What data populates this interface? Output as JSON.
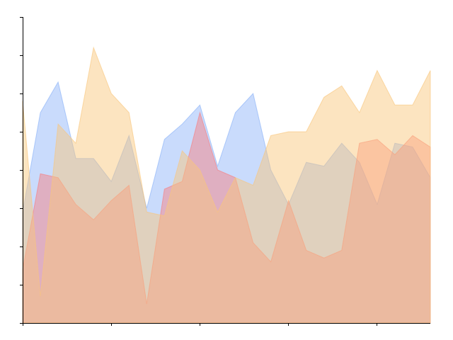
{
  "chart_data": {
    "type": "area",
    "title": "",
    "xlabel": "",
    "ylabel": "",
    "x": [
      0,
      1,
      2,
      3,
      4,
      5,
      6,
      7,
      8,
      9,
      10,
      11,
      12,
      13,
      14,
      15,
      16,
      17,
      18,
      19,
      20,
      21,
      22,
      23
    ],
    "xlim": [
      0,
      23
    ],
    "ylim": [
      0,
      8
    ],
    "grid": false,
    "x_tick_count": 5,
    "y_tick_count": 9,
    "series": [
      {
        "color": "#7faaf7",
        "opacity": 0.42,
        "values": [
          2.9,
          5.5,
          6.3,
          4.3,
          4.3,
          3.7,
          4.9,
          3.0,
          4.8,
          5.2,
          5.7,
          4.1,
          5.5,
          6.0,
          4.0,
          3.1,
          4.2,
          4.1,
          4.7,
          4.2,
          3.1,
          4.7,
          4.6,
          3.8
        ]
      },
      {
        "color": "#fa7a7a",
        "opacity": 0.45,
        "values": [
          1.4,
          3.9,
          3.8,
          3.1,
          2.7,
          3.2,
          3.6,
          0.5,
          3.5,
          3.7,
          5.5,
          4.0,
          3.8,
          2.1,
          1.6,
          3.2,
          1.9,
          1.7,
          1.9,
          4.7,
          4.8,
          4.4,
          4.9,
          4.6
        ]
      },
      {
        "color": "#f8c67c",
        "opacity": 0.48,
        "values": [
          5.8,
          0.7,
          5.2,
          4.7,
          7.2,
          6.0,
          5.5,
          2.9,
          2.8,
          4.5,
          4.0,
          2.9,
          3.8,
          3.6,
          4.9,
          5.0,
          5.0,
          5.9,
          6.2,
          5.5,
          6.6,
          5.7,
          5.7,
          6.6
        ]
      }
    ]
  }
}
